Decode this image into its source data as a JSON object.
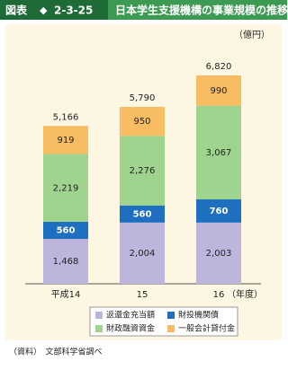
{
  "header": {
    "label": "図表",
    "number": "2-3-25"
  },
  "chart_data": {
    "type": "stacked_bar",
    "title": "日本学生支援機構の事業規模の推移",
    "unit": "（億円）",
    "x_unit": "（年度）",
    "categories": [
      "平成14",
      "15",
      "16"
    ],
    "series": [
      {
        "name": "返還金充当額",
        "color": "#bdb5dc",
        "values": [
          1468,
          2004,
          2003
        ],
        "value_labels": [
          "1,468",
          "2,004",
          "2,003"
        ]
      },
      {
        "name": "財投機関債",
        "color": "#1f6fc1",
        "values": [
          560,
          560,
          760
        ],
        "value_labels": [
          "560",
          "560",
          "760"
        ]
      },
      {
        "name": "財政融資資金",
        "color": "#9fd48e",
        "values": [
          2219,
          2276,
          3067
        ],
        "value_labels": [
          "2,219",
          "2,276",
          "3,067"
        ]
      },
      {
        "name": "一般会計貸付金",
        "color": "#f8bc62",
        "values": [
          919,
          950,
          990
        ],
        "value_labels": [
          "919",
          "950",
          "990"
        ]
      }
    ],
    "totals": [
      5166,
      5790,
      6820
    ],
    "total_labels": [
      "5,166",
      "5,790",
      "6,820"
    ]
  },
  "source": "（資料）　文部科学省調べ"
}
